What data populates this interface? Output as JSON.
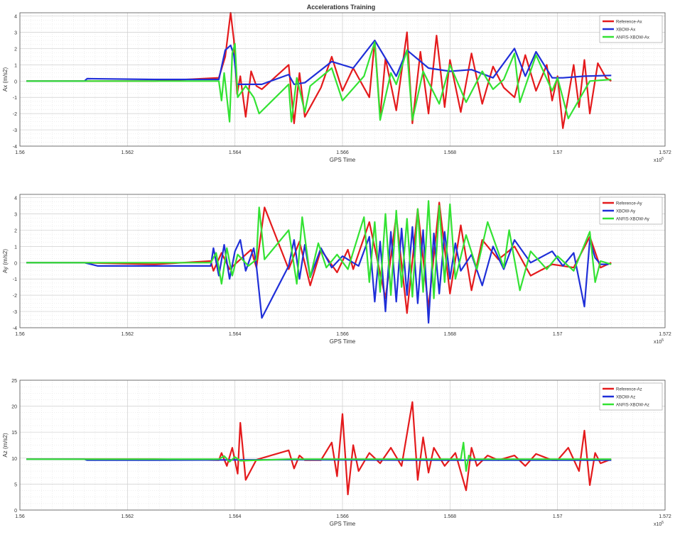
{
  "title": "Accelerations Training",
  "colors": {
    "reference": "#e41a1c",
    "xbow": "#1f2fd8",
    "anfis": "#33e233",
    "grid": "#dedede",
    "axis": "#555555"
  },
  "chart_data": [
    {
      "type": "line",
      "xlabel": "GPS Time",
      "ylabel": "Ax (m/s2)",
      "xlim": [
        156000,
        157200
      ],
      "ylim": [
        -4,
        4.2
      ],
      "yticks": [
        4,
        3,
        2,
        1,
        0,
        -1,
        -2,
        -3,
        -4
      ],
      "xticks": [
        156000,
        156200,
        156400,
        156600,
        156800,
        157000,
        157200
      ],
      "xtick_labels": [
        "1.56",
        "1.562",
        "1.564",
        "1.566",
        "1.568",
        "1.57",
        "1.572"
      ],
      "x_exponent": "x10",
      "exponent_power": "5",
      "legend": "top-right",
      "series": [
        {
          "name": "Reference-Ax",
          "color": "#e41a1c",
          "x": [
            156012,
            156120,
            156250,
            156370,
            156382,
            156392,
            156398,
            156404,
            156410,
            156420,
            156430,
            156440,
            156450,
            156500,
            156510,
            156520,
            156530,
            156560,
            156580,
            156600,
            156620,
            156650,
            156660,
            156670,
            156680,
            156700,
            156720,
            156730,
            156745,
            156760,
            156775,
            156790,
            156800,
            156820,
            156840,
            156860,
            156880,
            156900,
            156920,
            156940,
            156960,
            156980,
            156990,
            157000,
            157010,
            157030,
            157040,
            157050,
            157060,
            157075,
            157090,
            157100
          ],
          "y": [
            0.0,
            0.0,
            0.0,
            0.2,
            1.5,
            4.2,
            2.5,
            -0.8,
            0.3,
            -2.2,
            0.6,
            -0.3,
            -0.5,
            1.0,
            -2.6,
            0.5,
            -2.2,
            -0.4,
            1.5,
            -0.6,
            0.8,
            -1.0,
            2.5,
            -2.2,
            1.4,
            -1.8,
            3.0,
            -2.6,
            1.8,
            -2.0,
            2.8,
            -1.6,
            1.3,
            -1.9,
            1.7,
            -1.4,
            0.9,
            -0.4,
            -1.0,
            1.6,
            -0.6,
            1.0,
            -1.2,
            0.3,
            -2.9,
            1.0,
            -1.6,
            1.3,
            -2.0,
            1.1,
            0.2,
            0.0
          ]
        },
        {
          "name": "XBOW-Ax",
          "color": "#1f2fd8",
          "x": [
            156012,
            156120,
            156125,
            156250,
            156370,
            156382,
            156392,
            156398,
            156404,
            156420,
            156450,
            156500,
            156510,
            156530,
            156580,
            156620,
            156660,
            156700,
            156720,
            156760,
            156800,
            156840,
            156880,
            156920,
            156940,
            156960,
            156990,
            157010,
            157050,
            157100
          ],
          "y": [
            0.0,
            0.0,
            0.15,
            0.1,
            0.1,
            1.9,
            2.2,
            1.6,
            -0.2,
            -0.2,
            -0.2,
            0.4,
            -0.2,
            -0.1,
            1.2,
            0.8,
            2.5,
            0.3,
            1.9,
            0.8,
            0.6,
            0.7,
            0.2,
            2.0,
            0.3,
            1.8,
            0.2,
            0.2,
            0.3,
            0.35
          ]
        },
        {
          "name": "ANFIS-XBOW-Ax",
          "color": "#33e233",
          "x": [
            156012,
            156120,
            156250,
            156370,
            156375,
            156380,
            156390,
            156395,
            156400,
            156405,
            156420,
            156435,
            156445,
            156500,
            156505,
            156515,
            156530,
            156540,
            156580,
            156600,
            156640,
            156660,
            156670,
            156690,
            156700,
            156720,
            156730,
            156750,
            156780,
            156800,
            156830,
            156860,
            156880,
            156900,
            156920,
            156930,
            156960,
            156990,
            157000,
            157020,
            157060,
            157100
          ],
          "y": [
            0.0,
            0.0,
            0.0,
            0.0,
            -1.2,
            0.5,
            -2.5,
            1.7,
            2.3,
            -1.0,
            -0.3,
            -1.0,
            -2.0,
            -0.2,
            -2.5,
            0.2,
            -1.9,
            -0.3,
            0.8,
            -1.2,
            0.3,
            2.4,
            -2.4,
            0.5,
            -0.2,
            1.9,
            -2.4,
            0.6,
            -1.4,
            1.0,
            -1.3,
            0.6,
            -0.5,
            0.1,
            1.7,
            -1.3,
            1.6,
            -0.6,
            0.2,
            -2.3,
            0.0,
            0.1
          ]
        }
      ]
    },
    {
      "type": "line",
      "xlabel": "GPS Time",
      "ylabel": "Ay (m/s2)",
      "xlim": [
        156000,
        157200
      ],
      "ylim": [
        -4,
        4.2
      ],
      "yticks": [
        4,
        3,
        2,
        1,
        0,
        -1,
        -2,
        -3,
        -4
      ],
      "xticks": [
        156000,
        156200,
        156400,
        156600,
        156800,
        157000,
        157200
      ],
      "xtick_labels": [
        "1.56",
        "1.562",
        "1.564",
        "1.566",
        "1.568",
        "1.57",
        "1.572"
      ],
      "x_exponent": "x10",
      "exponent_power": "5",
      "legend": "top-right",
      "series": [
        {
          "name": "Reference-Ay",
          "color": "#e41a1c",
          "x": [
            156012,
            156120,
            156250,
            156355,
            156360,
            156375,
            156390,
            156410,
            156430,
            156440,
            156455,
            156500,
            156520,
            156540,
            156560,
            156590,
            156610,
            156620,
            156650,
            156680,
            156700,
            156720,
            156740,
            156760,
            156780,
            156800,
            156820,
            156840,
            156860,
            156890,
            156920,
            156950,
            156990,
            157030,
            157060,
            157080,
            157100
          ],
          "y": [
            0.0,
            0.0,
            -0.1,
            0.1,
            -0.5,
            0.6,
            -0.4,
            0.2,
            0.8,
            -0.3,
            3.4,
            -0.4,
            1.3,
            -1.4,
            0.8,
            -0.6,
            0.8,
            -0.4,
            2.5,
            -2.2,
            2.9,
            -3.1,
            3.3,
            -2.8,
            3.7,
            -1.9,
            2.3,
            -1.7,
            1.4,
            0.2,
            1.0,
            -0.8,
            -0.1,
            -0.3,
            1.6,
            -0.3,
            0.0
          ]
        },
        {
          "name": "XBOW-Ay",
          "color": "#1f2fd8",
          "x": [
            156012,
            156120,
            156145,
            156250,
            156355,
            156360,
            156370,
            156380,
            156390,
            156400,
            156410,
            156420,
            156435,
            156440,
            156450,
            156500,
            156510,
            156520,
            156530,
            156540,
            156560,
            156580,
            156600,
            156630,
            156650,
            156660,
            156670,
            156680,
            156690,
            156700,
            156710,
            156720,
            156730,
            156740,
            156750,
            156760,
            156770,
            156780,
            156790,
            156800,
            156810,
            156820,
            156840,
            156860,
            156880,
            156900,
            156920,
            156950,
            156990,
            157010,
            157030,
            157050,
            157060,
            157070,
            157080,
            157095
          ],
          "y": [
            0.0,
            0.0,
            -0.2,
            -0.2,
            -0.2,
            0.9,
            -0.8,
            1.1,
            -1.0,
            0.7,
            1.4,
            -0.5,
            0.9,
            -0.2,
            -3.4,
            -0.2,
            1.4,
            -1.0,
            1.1,
            -0.9,
            0.9,
            -0.3,
            0.4,
            -0.2,
            1.6,
            -2.4,
            1.3,
            -3.0,
            1.9,
            -2.4,
            2.1,
            -2.0,
            2.2,
            -2.5,
            2.0,
            -3.7,
            1.8,
            -1.9,
            1.9,
            -1.0,
            1.2,
            -0.5,
            0.5,
            -1.4,
            1.0,
            -0.4,
            1.4,
            0.0,
            0.7,
            -0.2,
            0.6,
            -2.7,
            1.4,
            0.3,
            -0.1,
            -0.1
          ]
        },
        {
          "name": "ANFIS-XBOW-Ay",
          "color": "#33e233",
          "x": [
            156012,
            156120,
            156250,
            156355,
            156365,
            156375,
            156385,
            156395,
            156405,
            156425,
            156440,
            156445,
            156455,
            156500,
            156515,
            156525,
            156540,
            156555,
            156570,
            156590,
            156610,
            156640,
            156650,
            156660,
            156670,
            156680,
            156690,
            156700,
            156710,
            156720,
            156730,
            156740,
            156750,
            156760,
            156770,
            156780,
            156790,
            156800,
            156810,
            156830,
            156850,
            156870,
            156900,
            156910,
            156930,
            156950,
            156980,
            157000,
            157030,
            157060,
            157070,
            157080,
            157100
          ],
          "y": [
            0.0,
            0.0,
            0.0,
            0.0,
            0.6,
            -1.3,
            0.9,
            -0.8,
            0.5,
            -0.2,
            0.2,
            3.4,
            0.2,
            2.0,
            -1.3,
            2.8,
            -0.9,
            1.2,
            -0.3,
            0.5,
            -0.4,
            2.8,
            -1.2,
            2.5,
            -1.8,
            3.0,
            -2.0,
            3.2,
            -1.5,
            2.7,
            -2.1,
            3.3,
            -1.8,
            3.8,
            -2.2,
            3.5,
            -1.2,
            3.6,
            -1.0,
            1.7,
            -0.4,
            2.5,
            -0.3,
            2.0,
            -1.7,
            0.7,
            -0.4,
            0.4,
            -0.5,
            1.9,
            -1.2,
            0.1,
            -0.1
          ]
        }
      ]
    },
    {
      "type": "line",
      "xlabel": "GPS Time",
      "ylabel": "Az (m/s2)",
      "xlim": [
        156000,
        157200
      ],
      "ylim": [
        0,
        25
      ],
      "yticks": [
        25,
        20,
        15,
        10,
        5,
        0
      ],
      "xticks": [
        156000,
        156200,
        156400,
        156600,
        156800,
        157000,
        157200
      ],
      "xtick_labels": [
        "1.56",
        "1.562",
        "1.564",
        "1.566",
        "1.568",
        "1.57",
        "1.572"
      ],
      "x_exponent": "x10",
      "exponent_power": "5",
      "legend": "top-right",
      "series": [
        {
          "name": "Reference-Az",
          "color": "#e41a1c",
          "x": [
            156012,
            156250,
            156370,
            156375,
            156385,
            156395,
            156405,
            156410,
            156420,
            156440,
            156500,
            156510,
            156520,
            156530,
            156560,
            156580,
            156590,
            156600,
            156610,
            156620,
            156630,
            156650,
            156670,
            156690,
            156710,
            156730,
            156740,
            156750,
            156760,
            156770,
            156790,
            156810,
            156830,
            156840,
            156850,
            156870,
            156890,
            156920,
            156940,
            156960,
            156990,
            157000,
            157020,
            157040,
            157050,
            157060,
            157070,
            157080,
            157100
          ],
          "y": [
            9.8,
            9.8,
            9.6,
            11.0,
            8.5,
            12.0,
            7.0,
            16.8,
            5.8,
            9.7,
            11.5,
            8.0,
            10.5,
            9.6,
            9.6,
            13.0,
            6.5,
            18.5,
            3.0,
            12.5,
            7.5,
            11.0,
            9.0,
            12.0,
            8.5,
            20.8,
            5.8,
            14.0,
            7.2,
            12.0,
            8.5,
            11.0,
            3.8,
            12.0,
            8.5,
            10.5,
            9.6,
            10.5,
            8.5,
            10.8,
            9.6,
            9.6,
            12.0,
            7.5,
            15.3,
            4.8,
            11.0,
            9.0,
            9.8
          ]
        },
        {
          "name": "XBOW-Az",
          "color": "#1f2fd8",
          "x": [
            156012,
            156120,
            156125,
            156250,
            156500,
            156750,
            157000,
            157100
          ],
          "y": [
            9.8,
            9.8,
            9.6,
            9.6,
            9.7,
            9.6,
            9.6,
            9.6
          ]
        },
        {
          "name": "ANFIS-XBOW-Az",
          "color": "#33e233",
          "x": [
            156012,
            156250,
            156370,
            156380,
            156390,
            156400,
            156410,
            156500,
            156600,
            156700,
            156820,
            156825,
            156830,
            156835,
            156840,
            156900,
            157000,
            157100
          ],
          "y": [
            9.8,
            9.8,
            9.8,
            10.4,
            9.3,
            10.2,
            9.5,
            9.8,
            9.8,
            9.8,
            9.8,
            13.0,
            7.5,
            10.5,
            9.8,
            9.8,
            9.8,
            9.8
          ]
        }
      ]
    }
  ]
}
